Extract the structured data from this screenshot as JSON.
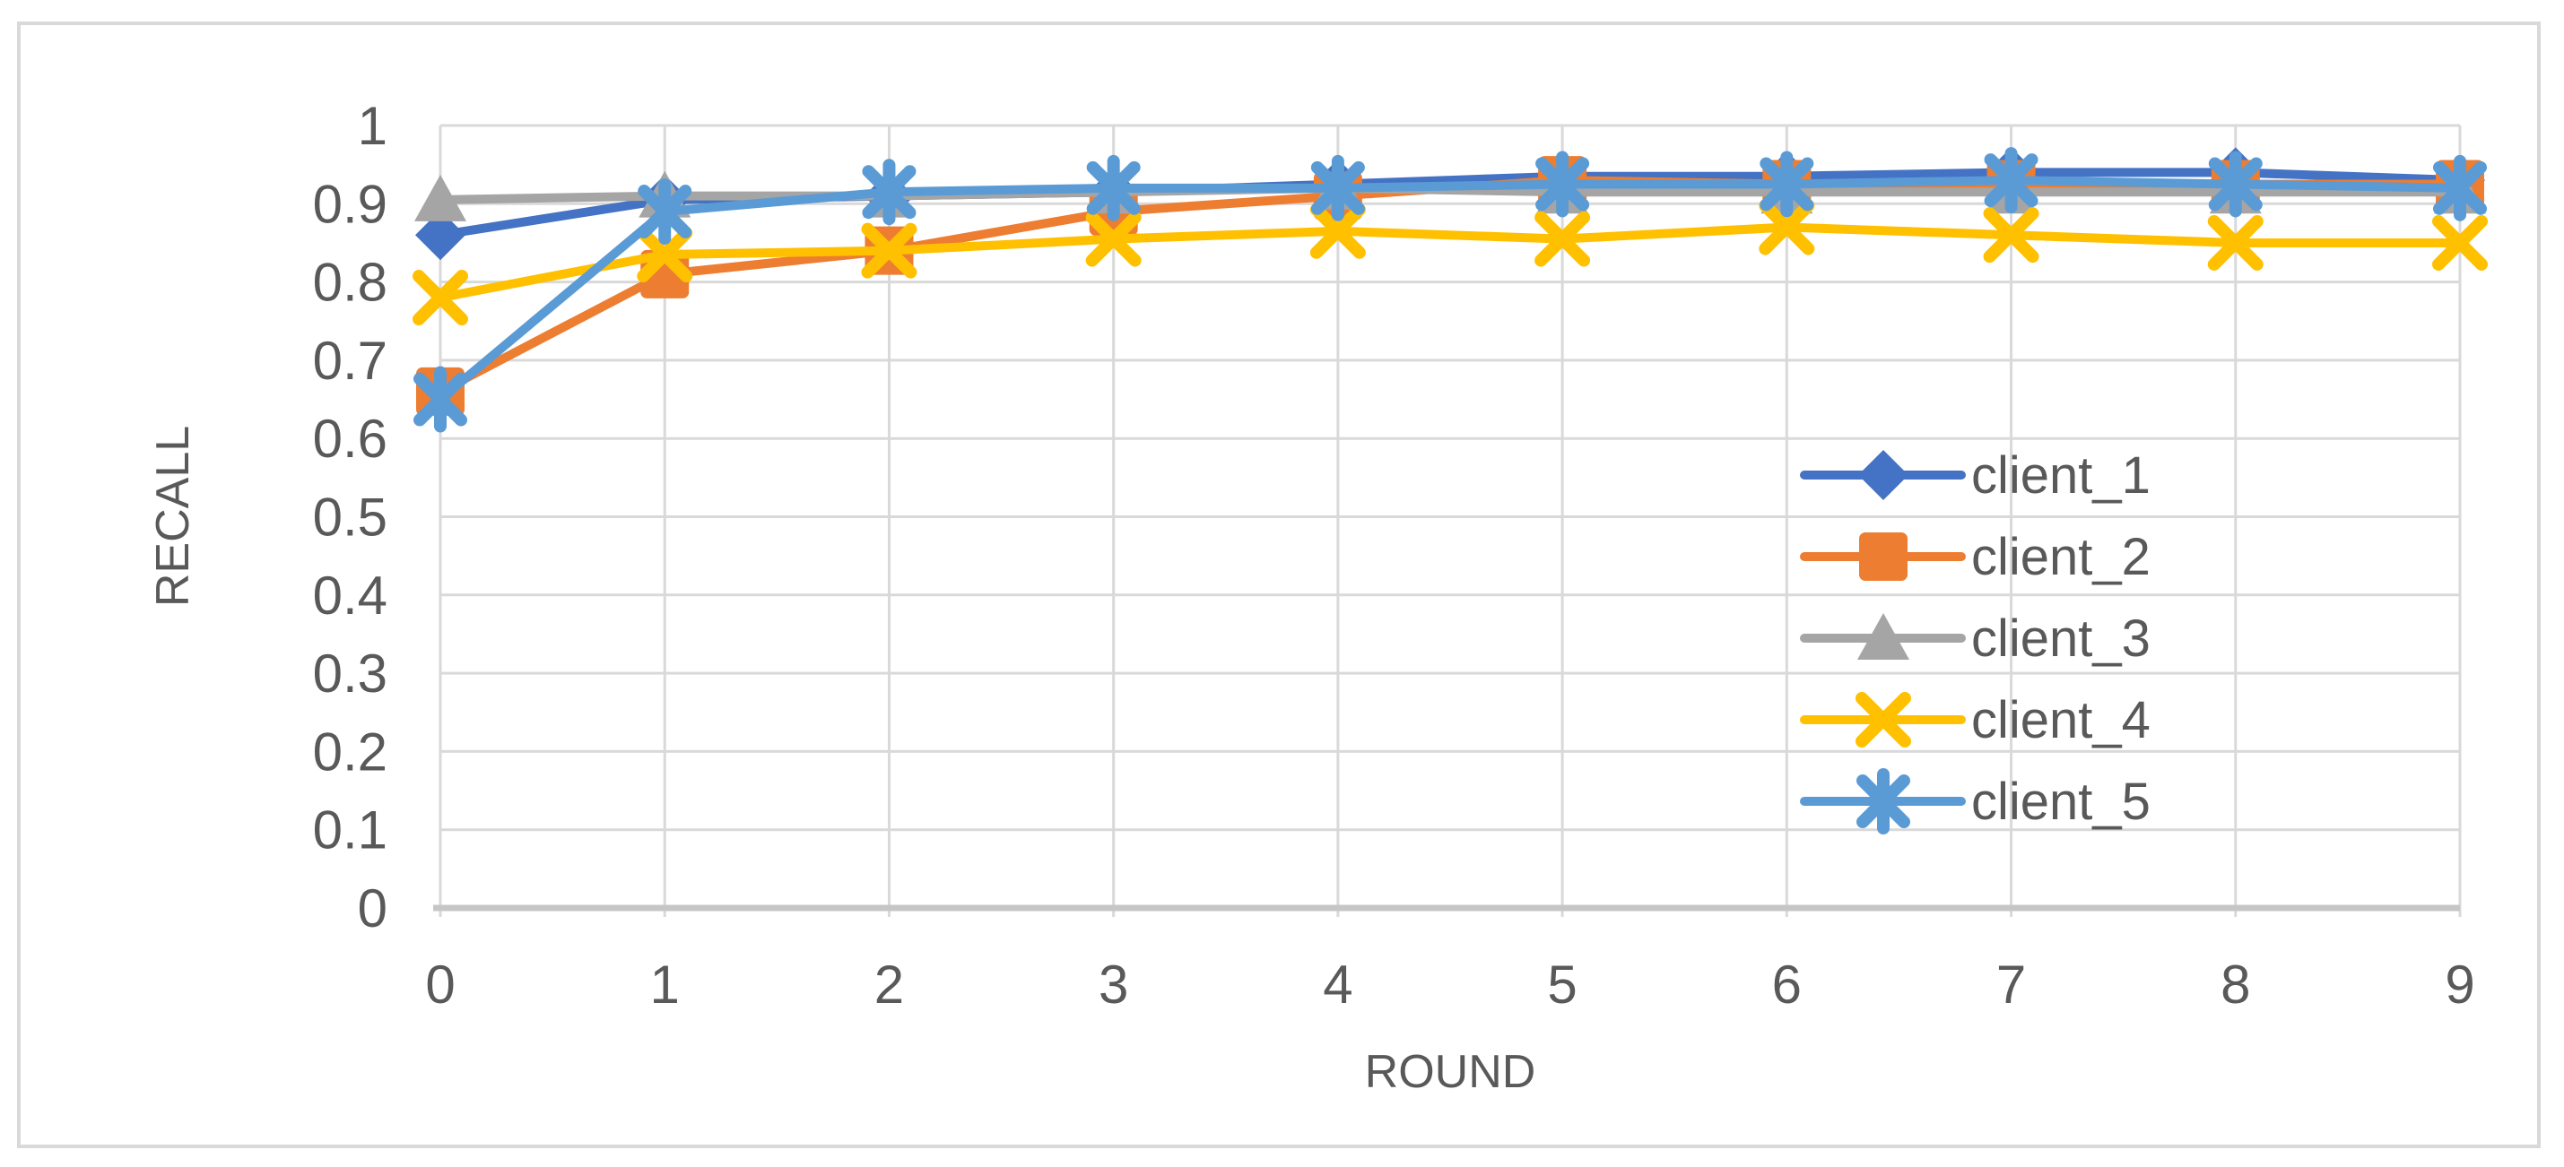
{
  "styles": {
    "text_color": "#595959",
    "gridline_color": "#D9D9D9",
    "axis_line_color": "#C6C6C6",
    "figure_border_color": "#D9D9D9",
    "background_color": "#FFFFFF"
  },
  "chart_data": {
    "type": "line",
    "title": "",
    "xlabel": "ROUND",
    "ylabel": "RECALL",
    "x": [
      0,
      1,
      2,
      3,
      4,
      5,
      6,
      7,
      8,
      9
    ],
    "x_tick_labels": [
      "0",
      "1",
      "2",
      "3",
      "4",
      "5",
      "6",
      "7",
      "8",
      "9"
    ],
    "ylim": [
      0,
      1
    ],
    "yticks": [
      0,
      0.1,
      0.2,
      0.3,
      0.4,
      0.5,
      0.6,
      0.7,
      0.8,
      0.9,
      1
    ],
    "ytick_labels": [
      "0",
      "0.1",
      "0.2",
      "0.3",
      "0.4",
      "0.5",
      "0.6",
      "0.7",
      "0.8",
      "0.9",
      "1"
    ],
    "grid": true,
    "legend_position": "middle-right",
    "series": [
      {
        "name": "client_1",
        "color": "#4472C4",
        "marker": "diamond",
        "values": [
          0.86,
          0.905,
          0.91,
          0.915,
          0.925,
          0.935,
          0.935,
          0.94,
          0.94,
          0.93
        ]
      },
      {
        "name": "client_2",
        "color": "#ED7D31",
        "marker": "square",
        "values": [
          0.66,
          0.81,
          0.84,
          0.89,
          0.91,
          0.93,
          0.925,
          0.925,
          0.925,
          0.925
        ]
      },
      {
        "name": "client_3",
        "color": "#A5A5A5",
        "marker": "triangle",
        "values": [
          0.905,
          0.91,
          0.91,
          0.915,
          0.92,
          0.915,
          0.915,
          0.915,
          0.915,
          0.915
        ]
      },
      {
        "name": "client_4",
        "color": "#FFC000",
        "marker": "x",
        "values": [
          0.78,
          0.835,
          0.84,
          0.855,
          0.865,
          0.855,
          0.87,
          0.86,
          0.85,
          0.85
        ]
      },
      {
        "name": "client_5",
        "color": "#5B9BD5",
        "marker": "asterisk",
        "values": [
          0.65,
          0.89,
          0.915,
          0.92,
          0.92,
          0.925,
          0.925,
          0.93,
          0.925,
          0.92
        ]
      }
    ]
  }
}
